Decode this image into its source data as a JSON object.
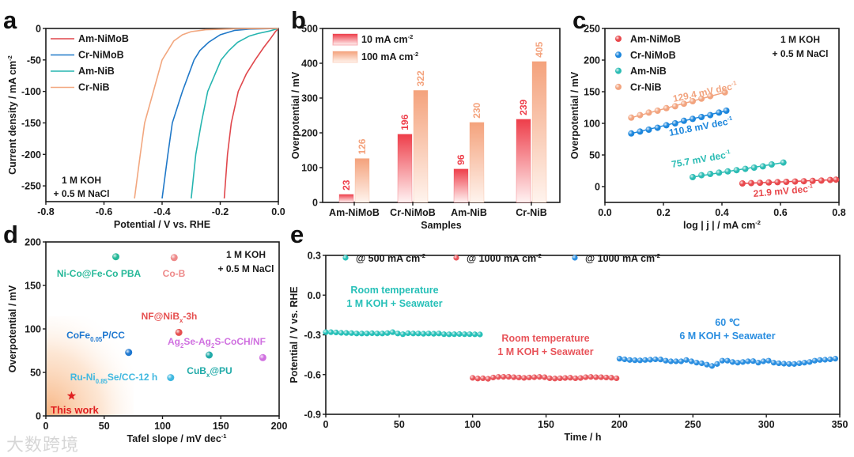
{
  "watermark": "大数跨境",
  "chart_data": [
    {
      "panel": "a",
      "type": "line",
      "xlabel": "Potential / V vs. RHE",
      "ylabel": [
        "Current density / mA cm",
        "^-2"
      ],
      "xlim": [
        -0.8,
        0.0
      ],
      "ylim": [
        -275,
        0
      ],
      "xticks": [
        -0.8,
        -0.6,
        -0.4,
        -0.2,
        0.0
      ],
      "xtick_labels": [
        "-0.8",
        "-0.6",
        "-0.4",
        "-0.2",
        "0.0"
      ],
      "yticks": [
        0,
        -50,
        -100,
        -150,
        -200,
        -250
      ],
      "legend_position": "top-left",
      "annotation": [
        "1 M KOH",
        "+ 0.5 M NaCl"
      ],
      "series": [
        {
          "name": "Am-NiMoB",
          "color": "#e0474c",
          "x": [
            0,
            -0.01,
            -0.03,
            -0.05,
            -0.08,
            -0.11,
            -0.138,
            -0.162,
            -0.175,
            -0.186
          ],
          "y": [
            0,
            -5,
            -18,
            -30,
            -50,
            -72,
            -100,
            -150,
            -200,
            -270
          ]
        },
        {
          "name": "Cr-NiMoB",
          "color": "#1f78c8",
          "x": [
            0,
            -0.1,
            -0.15,
            -0.2,
            -0.24,
            -0.27,
            -0.29,
            -0.33,
            -0.365,
            -0.38,
            -0.4
          ],
          "y": [
            0,
            -1,
            -3,
            -10,
            -22,
            -35,
            -50,
            -100,
            -150,
            -200,
            -270
          ]
        },
        {
          "name": "Am-NiB",
          "color": "#26b5b0",
          "x": [
            0,
            -0.03,
            -0.07,
            -0.1,
            -0.14,
            -0.17,
            -0.197,
            -0.243,
            -0.265,
            -0.284,
            -0.3
          ],
          "y": [
            0,
            -4,
            -8,
            -12,
            -22,
            -35,
            -50,
            -100,
            -150,
            -200,
            -270
          ]
        },
        {
          "name": "Cr-NiB",
          "color": "#f2a77f",
          "x": [
            0,
            -0.15,
            -0.25,
            -0.3,
            -0.33,
            -0.36,
            -0.4,
            -0.43,
            -0.46,
            -0.475,
            -0.495
          ],
          "y": [
            0,
            -0.5,
            -2,
            -5,
            -10,
            -20,
            -50,
            -100,
            -150,
            -200,
            -270
          ]
        }
      ]
    },
    {
      "panel": "b",
      "type": "bar",
      "xlabel": "Samples",
      "ylabel": "Overpotential / mV",
      "ylim": [
        0,
        500
      ],
      "yticks": [
        0,
        100,
        200,
        300,
        400,
        500
      ],
      "categories": [
        "Am-NiMoB",
        "Cr-NiMoB",
        "Am-NiB",
        "Cr-NiB"
      ],
      "legend_position": "top-left",
      "series": [
        {
          "name": [
            "10 mA cm",
            "^-2"
          ],
          "color": "#ee3e4a",
          "values": [
            23,
            196,
            96,
            239
          ]
        },
        {
          "name": [
            "100 mA cm",
            "^-2"
          ],
          "color": "#f4a27c",
          "values": [
            126,
            322,
            230,
            405
          ]
        }
      ]
    },
    {
      "panel": "c",
      "type": "scatter",
      "xlabel": [
        "log | j | / mA cm",
        "^-2"
      ],
      "ylabel": "Overpotential / mV",
      "xlim": [
        0.0,
        0.8
      ],
      "ylim": [
        -25,
        250
      ],
      "xticks": [
        0.0,
        0.2,
        0.4,
        0.6,
        0.8
      ],
      "xtick_labels": [
        "0.0",
        "0.2",
        "0.4",
        "0.6",
        "0.8"
      ],
      "yticks": [
        0,
        50,
        100,
        150,
        200,
        250
      ],
      "legend_position": "top-left",
      "annotation": [
        "1 M KOH",
        "+ 0.5 M NaCl"
      ],
      "series": [
        {
          "name": "Am-NiMoB",
          "color": "#e8484c",
          "slope_label": [
            "21.9 mV dec",
            "^-1"
          ],
          "x": [
            0.47,
            0.5,
            0.53,
            0.56,
            0.59,
            0.62,
            0.65,
            0.68,
            0.71,
            0.74,
            0.77,
            0.79
          ],
          "y": [
            5,
            5.5,
            6,
            6.5,
            7,
            7.5,
            8,
            8.5,
            9,
            9.5,
            10.5,
            11
          ]
        },
        {
          "name": "Cr-NiMoB",
          "color": "#1c86dc",
          "slope_label": [
            "110.8 mV dec",
            "^-1"
          ],
          "x": [
            0.09,
            0.12,
            0.15,
            0.18,
            0.21,
            0.24,
            0.27,
            0.3,
            0.33,
            0.36,
            0.39,
            0.415
          ],
          "y": [
            84,
            87,
            90,
            93,
            97,
            100,
            104,
            107,
            110,
            113,
            117,
            120
          ]
        },
        {
          "name": "Am-NiB",
          "color": "#2bbcb4",
          "slope_label": [
            "75.7 mV dec",
            "^-1"
          ],
          "x": [
            0.3,
            0.33,
            0.36,
            0.39,
            0.42,
            0.45,
            0.48,
            0.51,
            0.54,
            0.57,
            0.61
          ],
          "y": [
            15,
            18,
            20,
            22,
            24,
            26,
            28,
            30,
            32,
            35,
            38
          ]
        },
        {
          "name": "Cr-NiB",
          "color": "#f2a47f",
          "slope_label": [
            "129.4 mV dec",
            "^-1"
          ],
          "x": [
            0.09,
            0.12,
            0.15,
            0.18,
            0.21,
            0.24,
            0.27,
            0.3,
            0.33,
            0.36,
            0.41
          ],
          "y": [
            109,
            113,
            117,
            120,
            124,
            127,
            131,
            135,
            139,
            143,
            149
          ]
        }
      ]
    },
    {
      "panel": "d",
      "type": "scatter",
      "xlabel": [
        "Tafel slope / mV dec",
        "^-1"
      ],
      "ylabel": "Overpotential / mV",
      "xlim": [
        0,
        200
      ],
      "ylim": [
        0,
        200
      ],
      "xticks": [
        0,
        50,
        100,
        150,
        200
      ],
      "yticks": [
        0,
        50,
        100,
        150,
        200
      ],
      "annotation": [
        "1 M KOH",
        "+ 0.5 M NaCl"
      ],
      "points": [
        {
          "label": [
            "Ni-Co@Fe-Co PBA"
          ],
          "x": 60,
          "y": 183,
          "color": "#26b898"
        },
        {
          "label": [
            "Co-B"
          ],
          "x": 110,
          "y": 182,
          "color": "#ee8a8a"
        },
        {
          "label": [
            "NF@NiB",
            "_x",
            "-3h"
          ],
          "x": 114,
          "y": 96,
          "color": "#e65050"
        },
        {
          "label": [
            "CoFe",
            "_0.05",
            "P/CC"
          ],
          "x": 71,
          "y": 73,
          "color": "#1f78d0"
        },
        {
          "label": [
            "Ag",
            "_2",
            "Se-Ag",
            "_2",
            "S-CoCH/NF"
          ],
          "x": 186,
          "y": 67,
          "color": "#d070e0"
        },
        {
          "label": [
            "CuB",
            "_x",
            "@PU"
          ],
          "x": 140,
          "y": 70,
          "color": "#20aaa8"
        },
        {
          "label": [
            "Ru-Ni",
            "_0.85",
            "Se/CC-12 h"
          ],
          "x": 107,
          "y": 44,
          "color": "#40b8e0"
        },
        {
          "label": [
            "This work"
          ],
          "x": 22,
          "y": 23,
          "color": "#e02020",
          "marker": "star"
        }
      ]
    },
    {
      "panel": "e",
      "type": "scatter",
      "xlabel": "Time / h",
      "ylabel": "Potential / V vs. RHE",
      "xlim": [
        0,
        350
      ],
      "ylim": [
        -0.9,
        0.3
      ],
      "xticks": [
        0,
        50,
        100,
        150,
        200,
        250,
        300,
        350
      ],
      "yticks": [
        0.3,
        0.0,
        -0.3,
        -0.6,
        -0.9
      ],
      "ytick_labels": [
        "0.3",
        "0.0",
        "-0.3",
        "-0.6",
        "-0.9"
      ],
      "legend_position": "top",
      "series": [
        {
          "name": [
            "@ 500 mA cm",
            "^-2"
          ],
          "color": "#27c0b8",
          "annotation": [
            "Room temperature",
            "1 M KOH + Seawater"
          ],
          "t_start": 0,
          "t_step": 3.5,
          "y": [
            -0.28,
            -0.28,
            -0.282,
            -0.285,
            -0.286,
            -0.287,
            -0.29,
            -0.29,
            -0.29,
            -0.288,
            -0.29,
            -0.29,
            -0.287,
            -0.28,
            -0.29,
            -0.295,
            -0.288,
            -0.29,
            -0.29,
            -0.292,
            -0.29,
            -0.292,
            -0.29,
            -0.295,
            -0.296,
            -0.295,
            -0.294,
            -0.295,
            -0.295,
            -0.296,
            -0.297
          ]
        },
        {
          "name": [
            "@ 1000 mA cm",
            "^-2"
          ],
          "color": "#e8545a",
          "annotation": [
            "Room temperature",
            "1 M KOH + Seawater"
          ],
          "t_start": 100,
          "t_step": 3.5,
          "y": [
            -0.625,
            -0.63,
            -0.628,
            -0.632,
            -0.622,
            -0.618,
            -0.617,
            -0.617,
            -0.62,
            -0.622,
            -0.625,
            -0.622,
            -0.62,
            -0.618,
            -0.62,
            -0.628,
            -0.63,
            -0.628,
            -0.626,
            -0.624,
            -0.628,
            -0.626,
            -0.62,
            -0.618,
            -0.62,
            -0.62,
            -0.622,
            -0.624,
            -0.628
          ]
        },
        {
          "name": [
            "@ 1000 mA cm",
            "^-2"
          ],
          "color": "#2a8ee0",
          "annotation": [
            "60 ℃",
            "6 M KOH + Seawater"
          ],
          "t_start": 200,
          "t_step": 3.5,
          "y": [
            -0.48,
            -0.485,
            -0.49,
            -0.492,
            -0.493,
            -0.49,
            -0.488,
            -0.485,
            -0.486,
            -0.495,
            -0.5,
            -0.5,
            -0.5,
            -0.49,
            -0.5,
            -0.51,
            -0.515,
            -0.525,
            -0.535,
            -0.52,
            -0.495,
            -0.495,
            -0.505,
            -0.51,
            -0.505,
            -0.5,
            -0.498,
            -0.51,
            -0.5,
            -0.495,
            -0.51,
            -0.515,
            -0.518,
            -0.52,
            -0.52,
            -0.515,
            -0.51,
            -0.505,
            -0.495,
            -0.49,
            -0.488,
            -0.485,
            -0.48
          ]
        }
      ]
    }
  ],
  "panel_letters": [
    "a",
    "b",
    "c",
    "d",
    "e"
  ]
}
